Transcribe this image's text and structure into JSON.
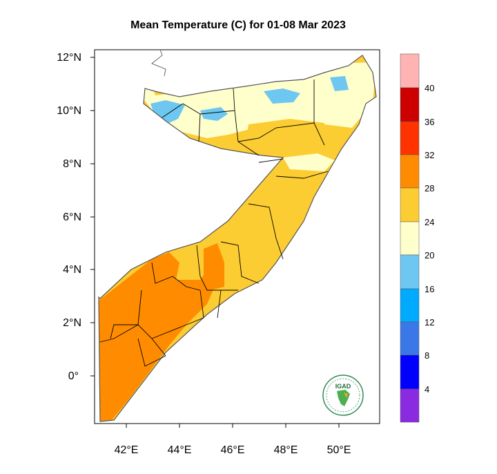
{
  "title": "Mean Temperature (C) for 01-08 Mar 2023",
  "axes": {
    "lat_ticks": [
      "12°N",
      "10°N",
      "8°N",
      "6°N",
      "4°N",
      "2°N",
      "0°"
    ],
    "lon_ticks": [
      "42°E",
      "44°E",
      "46°E",
      "48°E",
      "50°E"
    ]
  },
  "colorbar": {
    "labels": [
      "40",
      "36",
      "32",
      "28",
      "24",
      "20",
      "16",
      "12",
      "8",
      "4"
    ],
    "colors": [
      "#ffb3b3",
      "#cc0000",
      "#ff3300",
      "#ff8c00",
      "#fccc33",
      "#ffffcc",
      "#6ec7f0",
      "#00aaff",
      "#3a78e8",
      "#2f4fe0",
      "#0000ff",
      "#8a2be2"
    ]
  },
  "logo": {
    "text": "IGAD"
  },
  "colors": {
    "temp_20_24": "#ffffcc",
    "temp_24_28": "#fccc33",
    "temp_28_32": "#ff8c00",
    "temp_16_20": "#6ec7f0"
  }
}
